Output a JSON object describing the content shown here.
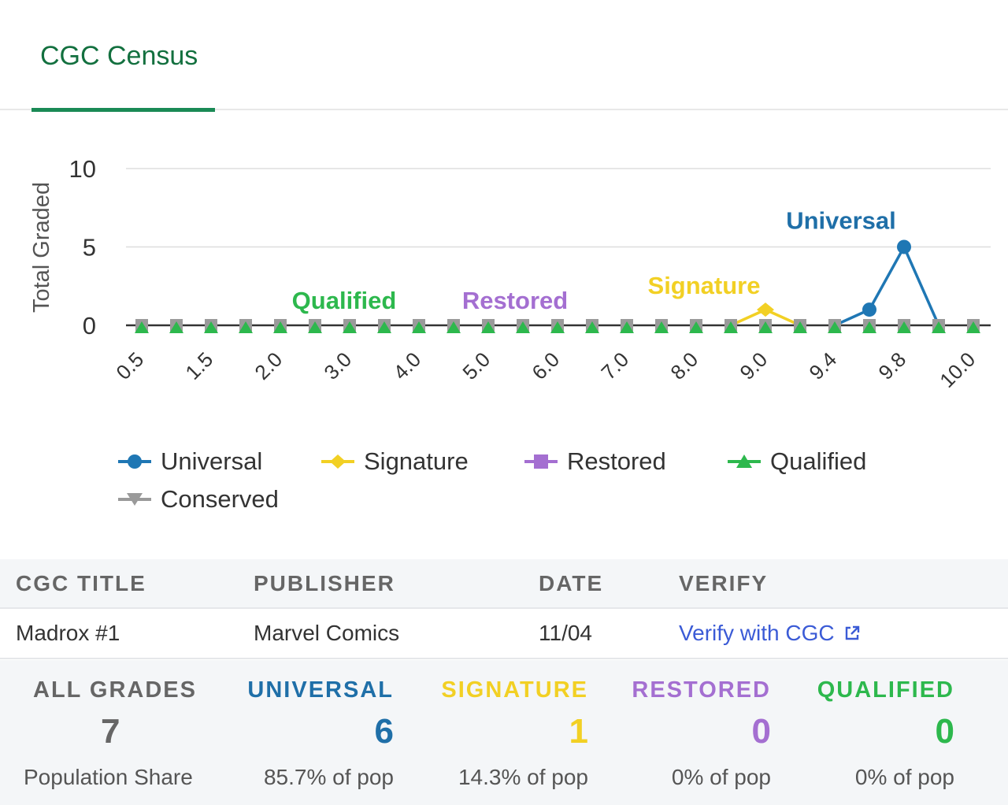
{
  "tabs": [
    {
      "label": "CGC Census",
      "active": true
    }
  ],
  "chart_data": {
    "type": "line",
    "ylabel": "Total Graded",
    "ylim": [
      0,
      10
    ],
    "yticks": [
      0,
      5,
      10
    ],
    "grid": true,
    "legend_position": "bottom-left",
    "x": [
      "0.5",
      "1.0",
      "1.5",
      "1.8",
      "2.0",
      "2.5",
      "3.0",
      "3.5",
      "4.0",
      "4.5",
      "5.0",
      "5.5",
      "6.0",
      "6.5",
      "7.0",
      "7.5",
      "8.0",
      "8.5",
      "9.0",
      "9.2",
      "9.4",
      "9.6",
      "9.8",
      "9.9",
      "10.0"
    ],
    "xtick_labels": [
      "0.5",
      "1.5",
      "2.0",
      "3.0",
      "4.0",
      "5.0",
      "6.0",
      "7.0",
      "8.0",
      "9.0",
      "9.4",
      "9.8",
      "10.0"
    ],
    "xtick_indices": [
      0,
      2,
      4,
      6,
      8,
      10,
      12,
      14,
      16,
      18,
      20,
      22,
      24
    ],
    "series": [
      {
        "name": "Universal",
        "color": "#1f77b4",
        "marker": "circle",
        "values": [
          0,
          0,
          0,
          0,
          0,
          0,
          0,
          0,
          0,
          0,
          0,
          0,
          0,
          0,
          0,
          0,
          0,
          0,
          0,
          0,
          0,
          1,
          5,
          0,
          0
        ],
        "visible_points": [
          21,
          22
        ],
        "label_at": 22
      },
      {
        "name": "Signature",
        "color": "#f2d024",
        "marker": "diamond",
        "values": [
          0,
          0,
          0,
          0,
          0,
          0,
          0,
          0,
          0,
          0,
          0,
          0,
          0,
          0,
          0,
          0,
          0,
          0,
          1,
          0,
          0,
          0,
          0,
          0,
          0
        ],
        "visible_points": [
          18
        ],
        "label_at": 18
      },
      {
        "name": "Restored",
        "color": "#a46fd1",
        "marker": "square",
        "values": [
          0,
          0,
          0,
          0,
          0,
          0,
          0,
          0,
          0,
          0,
          0,
          0,
          0,
          0,
          0,
          0,
          0,
          0,
          0,
          0,
          0,
          0,
          0,
          0,
          0
        ],
        "label_at": 9
      },
      {
        "name": "Qualified",
        "color": "#2db84d",
        "marker": "triangle",
        "values": [
          0,
          0,
          0,
          0,
          0,
          0,
          0,
          0,
          0,
          0,
          0,
          0,
          0,
          0,
          0,
          0,
          0,
          0,
          0,
          0,
          0,
          0,
          0,
          0,
          0
        ],
        "label_at": 5
      },
      {
        "name": "Conserved",
        "color": "#9a9a9a",
        "marker": "triangle-down",
        "values": [
          0,
          0,
          0,
          0,
          0,
          0,
          0,
          0,
          0,
          0,
          0,
          0,
          0,
          0,
          0,
          0,
          0,
          0,
          0,
          0,
          0,
          0,
          0,
          0,
          0
        ]
      }
    ]
  },
  "table": {
    "headers": {
      "title": "CGC TITLE",
      "publisher": "PUBLISHER",
      "date": "DATE",
      "verify": "VERIFY"
    },
    "row": {
      "title": "Madrox #1",
      "publisher": "Marvel Comics",
      "date": "11/04",
      "verify": "Verify with CGC"
    }
  },
  "stats": [
    {
      "label": "ALL GRADES",
      "value": "7",
      "sub": "Population Share",
      "color": "#666666"
    },
    {
      "label": "UNIVERSAL",
      "value": "6",
      "sub": "85.7% of pop",
      "color": "#1f6fa8"
    },
    {
      "label": "SIGNATURE",
      "value": "1",
      "sub": "14.3% of pop",
      "color": "#f2d024"
    },
    {
      "label": "RESTORED",
      "value": "0",
      "sub": "0% of pop",
      "color": "#a46fd1"
    },
    {
      "label": "QUALIFIED",
      "value": "0",
      "sub": "0% of pop",
      "color": "#2db84d"
    }
  ]
}
